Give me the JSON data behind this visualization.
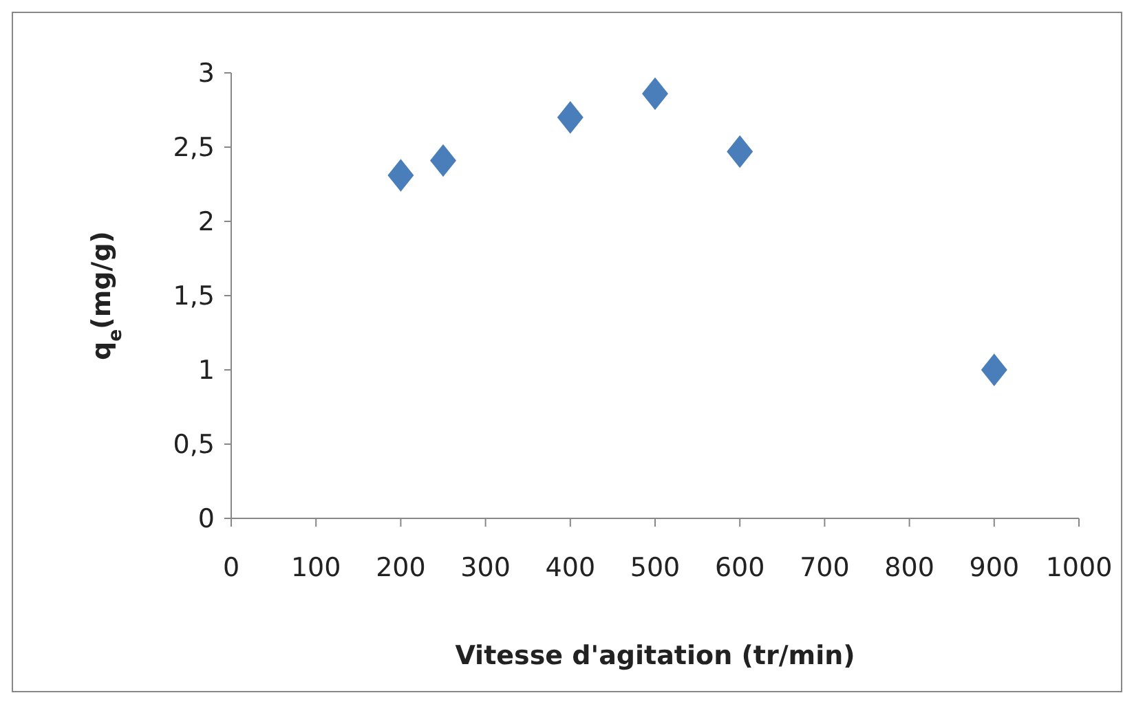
{
  "chart_data": {
    "type": "scatter",
    "xlabel": "Vitesse d'agitation (tr/min)",
    "ylabel": "q$_{e}$(mg/g)",
    "x": [
      200,
      250,
      400,
      500,
      600,
      900
    ],
    "values": [
      2.31,
      2.41,
      2.7,
      2.86,
      2.47,
      1.0
    ],
    "color": "#4a7ebb",
    "marker": "diamond",
    "grid": false,
    "xlim": [
      0,
      1000
    ],
    "xticks": [
      0,
      100,
      200,
      300,
      400,
      500,
      600,
      700,
      800,
      900,
      1000
    ],
    "ylim": [
      0,
      3
    ],
    "yticks": [
      0,
      {
        "value": 0.5,
        "label": "0,5"
      },
      1,
      {
        "value": 1.5,
        "label": "1,5"
      },
      2,
      {
        "value": 2.5,
        "label": "2,5"
      },
      3
    ]
  }
}
